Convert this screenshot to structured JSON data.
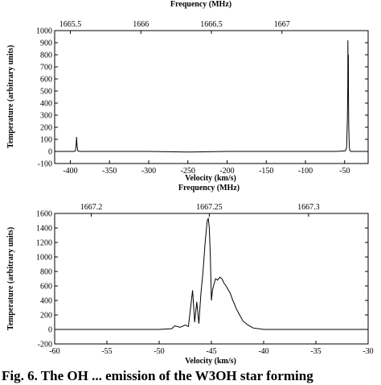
{
  "chart_data": [
    {
      "type": "line",
      "xlabel": "Velocity (km/s)",
      "x2label": "Frequency (MHz)",
      "ylabel": "Temperature (arbitrary units)",
      "xlim": [
        -420,
        -20
      ],
      "ylim": [
        -100,
        1000
      ],
      "x_ticks": [
        -400,
        -350,
        -300,
        -250,
        -200,
        -150,
        -100,
        -50
      ],
      "y_ticks": [
        -100,
        0,
        100,
        200,
        300,
        400,
        500,
        600,
        700,
        800,
        900,
        1000
      ],
      "x2_ticks": [
        {
          "label": "1665.5",
          "velocity": -400
        },
        {
          "label": "1666",
          "velocity": -310
        },
        {
          "label": "1666.5",
          "velocity": -220
        },
        {
          "label": "1667",
          "velocity": -130
        }
      ],
      "series": [
        {
          "x": [
            -420,
            -395,
            -393.5,
            -392.5,
            -392,
            -391.5,
            -390.5,
            -388,
            -350,
            -300,
            -250,
            -200,
            -150,
            -100,
            -60,
            -49,
            -47.5,
            -47,
            -46.5,
            -46,
            -45.8,
            -45.5,
            -45.2,
            -45,
            -44.7,
            -44.3,
            -44,
            -43.5,
            -42,
            -35,
            -20
          ],
          "y": [
            0,
            0,
            5,
            60,
            120,
            50,
            5,
            0,
            0,
            0,
            -5,
            0,
            0,
            0,
            0,
            5,
            30,
            150,
            280,
            550,
            920,
            650,
            800,
            400,
            200,
            100,
            40,
            10,
            0,
            0,
            0
          ]
        }
      ]
    },
    {
      "type": "line",
      "xlabel": "Velocity (km/s)",
      "x2label": "Frequency (MHz)",
      "ylabel": "Temperature (arbitrary units)",
      "xlim": [
        -60,
        -30
      ],
      "ylim": [
        -200,
        1600
      ],
      "x_ticks": [
        -60,
        -55,
        -50,
        -45,
        -40,
        -35,
        -30
      ],
      "y_ticks": [
        -200,
        0,
        200,
        400,
        600,
        800,
        1000,
        1200,
        1400,
        1600
      ],
      "x2_ticks": [
        {
          "label": "1667.2",
          "velocity": -56.5
        },
        {
          "label": "1667.25",
          "velocity": -45.2
        },
        {
          "label": "1667.3",
          "velocity": -35.7
        }
      ],
      "series": [
        {
          "x": [
            -60,
            -55,
            -50,
            -48.8,
            -48.5,
            -48,
            -47.5,
            -47.2,
            -46.8,
            -46.6,
            -46.4,
            -46.2,
            -46,
            -45.8,
            -45.6,
            -45.4,
            -45.3,
            -45.2,
            -45.1,
            -45.0,
            -44.9,
            -44.8,
            -44.6,
            -44.4,
            -44.2,
            -44,
            -43.8,
            -43.6,
            -43.4,
            -43.2,
            -43,
            -42.8,
            -42.6,
            -42.3,
            -42,
            -41.5,
            -41,
            -40,
            -35,
            -30
          ],
          "y": [
            0,
            0,
            0,
            10,
            50,
            30,
            60,
            40,
            540,
            100,
            380,
            80,
            500,
            800,
            1200,
            1500,
            1530,
            1400,
            1000,
            400,
            540,
            600,
            700,
            680,
            720,
            700,
            640,
            600,
            550,
            500,
            420,
            350,
            280,
            200,
            120,
            60,
            20,
            0,
            0,
            0
          ]
        }
      ]
    }
  ],
  "caption": "Fig. 6. The OH ... emission of the W3OH star forming"
}
